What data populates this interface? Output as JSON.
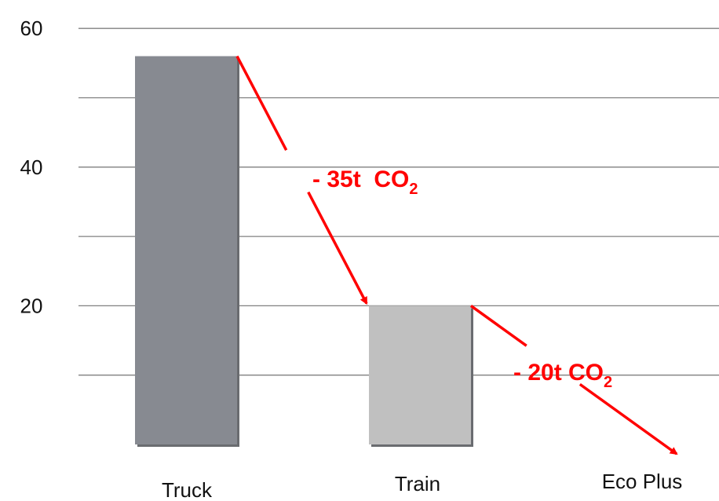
{
  "chart_data": {
    "type": "bar",
    "categories": [
      "Truck",
      "Train",
      "Eco Plus"
    ],
    "values": [
      56,
      20,
      0
    ],
    "ylim": [
      0,
      60
    ],
    "yticks": [
      20,
      40,
      60
    ],
    "gridlines": [
      10,
      20,
      30,
      40,
      50,
      60
    ],
    "grid": true,
    "colors": {
      "truck": "#878a91",
      "train": "#c0c0c0",
      "arrow": "#ff0000",
      "grid": "#808080"
    },
    "annotations": [
      {
        "from": "Truck",
        "to": "Train",
        "text": "- 35t  CO",
        "subscript": "2"
      },
      {
        "from": "Train",
        "to": "Eco Plus",
        "text": "- 20t CO",
        "subscript": "2"
      }
    ]
  }
}
